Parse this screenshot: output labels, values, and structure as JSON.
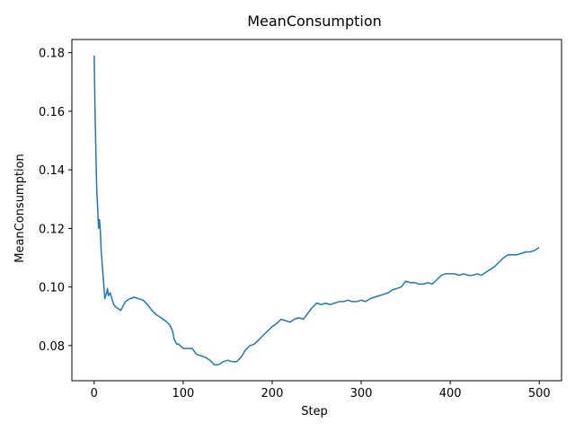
{
  "chart_data": {
    "type": "line",
    "title": "MeanConsumption",
    "xlabel": "Step",
    "ylabel": "MeanConsumption",
    "xlim": [
      -25,
      525
    ],
    "ylim": [
      0.068,
      0.1845
    ],
    "xticks": [
      0,
      100,
      200,
      300,
      400,
      500
    ],
    "yticks": [
      0.08,
      0.1,
      0.12,
      0.14,
      0.16,
      0.18
    ],
    "ytick_labels": [
      "0.08",
      "0.10",
      "0.12",
      "0.14",
      "0.16",
      "0.18"
    ],
    "grid": false,
    "legend": "none",
    "series": [
      {
        "color": "#1f77b4",
        "x": [
          0,
          1,
          2,
          3,
          4,
          5,
          6,
          7,
          8,
          9,
          10,
          12,
          14,
          15,
          16,
          18,
          20,
          22,
          25,
          30,
          35,
          40,
          45,
          50,
          55,
          60,
          65,
          70,
          75,
          80,
          85,
          88,
          90,
          93,
          95,
          100,
          105,
          110,
          115,
          120,
          125,
          130,
          135,
          140,
          145,
          150,
          155,
          160,
          165,
          170,
          175,
          180,
          185,
          190,
          195,
          200,
          205,
          210,
          215,
          220,
          225,
          230,
          235,
          240,
          245,
          250,
          255,
          260,
          265,
          270,
          275,
          280,
          285,
          290,
          295,
          300,
          305,
          310,
          315,
          320,
          325,
          330,
          335,
          340,
          345,
          350,
          355,
          360,
          365,
          370,
          375,
          380,
          385,
          390,
          395,
          400,
          405,
          410,
          415,
          420,
          425,
          430,
          435,
          440,
          445,
          450,
          455,
          460,
          465,
          470,
          475,
          480,
          485,
          490,
          495,
          500
        ],
        "y": [
          0.179,
          0.16,
          0.145,
          0.133,
          0.127,
          0.12,
          0.123,
          0.119,
          0.112,
          0.108,
          0.104,
          0.096,
          0.098,
          0.0995,
          0.097,
          0.098,
          0.096,
          0.094,
          0.093,
          0.092,
          0.095,
          0.096,
          0.0965,
          0.096,
          0.0955,
          0.094,
          0.092,
          0.0905,
          0.0895,
          0.0885,
          0.087,
          0.085,
          0.082,
          0.0805,
          0.0805,
          0.079,
          0.079,
          0.079,
          0.077,
          0.0765,
          0.076,
          0.075,
          0.0735,
          0.0735,
          0.0745,
          0.075,
          0.0745,
          0.0745,
          0.076,
          0.0785,
          0.08,
          0.0805,
          0.082,
          0.0835,
          0.085,
          0.0865,
          0.0875,
          0.089,
          0.0885,
          0.088,
          0.089,
          0.0895,
          0.089,
          0.091,
          0.093,
          0.0945,
          0.094,
          0.0945,
          0.094,
          0.0945,
          0.095,
          0.095,
          0.0955,
          0.095,
          0.095,
          0.0955,
          0.095,
          0.096,
          0.0965,
          0.097,
          0.0975,
          0.098,
          0.099,
          0.0995,
          0.1,
          0.102,
          0.1015,
          0.1015,
          0.101,
          0.101,
          0.1015,
          0.101,
          0.1025,
          0.104,
          0.1045,
          0.1045,
          0.1045,
          0.104,
          0.1045,
          0.104,
          0.104,
          0.1045,
          0.104,
          0.105,
          0.106,
          0.107,
          0.1085,
          0.11,
          0.111,
          0.111,
          0.111,
          0.1115,
          0.112,
          0.112,
          0.1125,
          0.1135
        ]
      }
    ]
  }
}
